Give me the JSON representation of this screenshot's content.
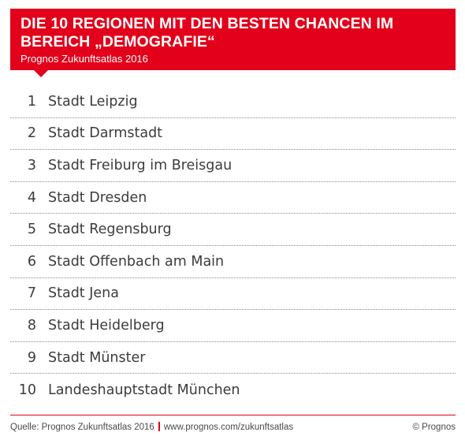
{
  "header": {
    "title": "Die 10 Regionen mit den besten Chancen im Bereich „Demografie“",
    "subtitle": "Prognos Zukunftsatlas 2016"
  },
  "ranking": [
    {
      "rank": "1",
      "name": "Stadt Leipzig"
    },
    {
      "rank": "2",
      "name": "Stadt Darmstadt"
    },
    {
      "rank": "3",
      "name": "Stadt Freiburg im Breisgau"
    },
    {
      "rank": "4",
      "name": "Stadt Dresden"
    },
    {
      "rank": "5",
      "name": "Stadt Regensburg"
    },
    {
      "rank": "6",
      "name": "Stadt Offenbach am Main"
    },
    {
      "rank": "7",
      "name": "Stadt Jena"
    },
    {
      "rank": "8",
      "name": "Stadt Heidelberg"
    },
    {
      "rank": "9",
      "name": "Stadt Münster"
    },
    {
      "rank": "10",
      "name": "Landeshauptstadt München"
    }
  ],
  "footer": {
    "source": "Quelle: Prognos Zukunftsatlas 2016",
    "url": "www.prognos.com/zukunftsatlas",
    "copyright": "© Prognos"
  },
  "colors": {
    "accent": "#e2001a",
    "text": "#3c3c3c"
  }
}
